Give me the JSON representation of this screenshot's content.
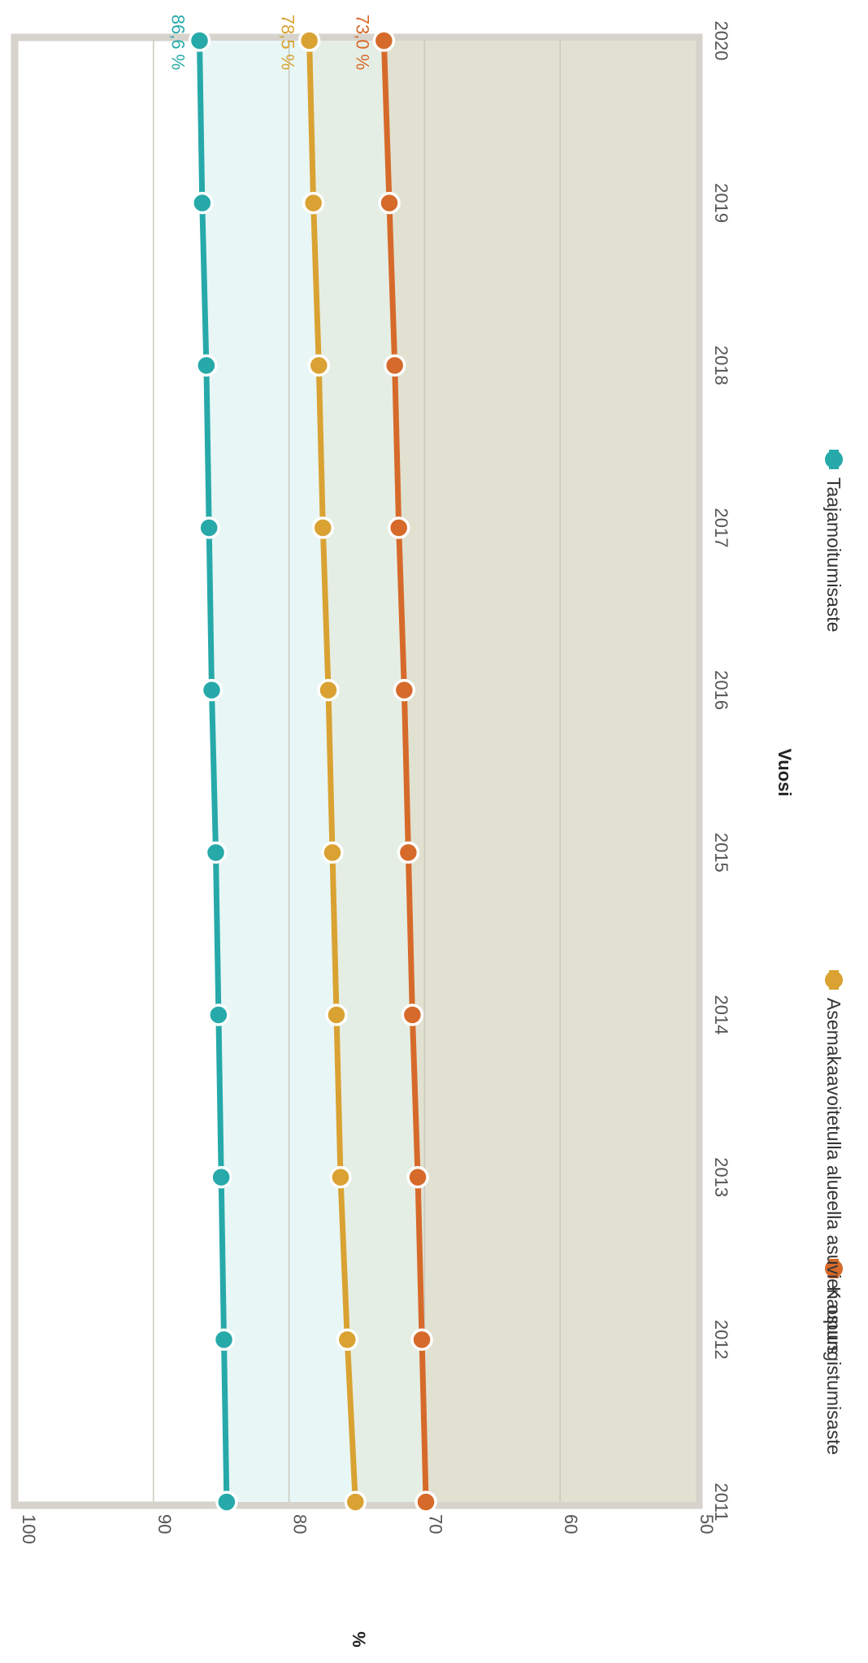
{
  "chart_data": {
    "type": "line",
    "title": "",
    "xlabel": "Vuosi",
    "ylabel": "%",
    "x": [
      2011,
      2012,
      2013,
      2014,
      2015,
      2016,
      2017,
      2018,
      2019,
      2020
    ],
    "ylim": [
      50,
      100
    ],
    "yticks": [
      50,
      60,
      70,
      80,
      90,
      100
    ],
    "grid": true,
    "legend_position": "bottom",
    "series": [
      {
        "name": "Kaupungistumisaste",
        "color": "#d66a2a",
        "values": [
          69.9,
          70.2,
          70.5,
          70.9,
          71.2,
          71.5,
          71.9,
          72.2,
          72.6,
          73.0
        ],
        "last_label": "73,0 %"
      },
      {
        "name": "Asemakaavoitetulla alueella asuvien osuus",
        "color": "#d9a232",
        "values": [
          75.1,
          75.7,
          76.2,
          76.5,
          76.8,
          77.1,
          77.5,
          77.8,
          78.2,
          78.5
        ],
        "last_label": "78,5 %"
      },
      {
        "name": "Taajamoitumisaste",
        "color": "#27a9a9",
        "values": [
          84.6,
          84.8,
          85.0,
          85.2,
          85.4,
          85.7,
          85.9,
          86.1,
          86.4,
          86.6
        ],
        "last_label": "86,6 %"
      }
    ]
  }
}
